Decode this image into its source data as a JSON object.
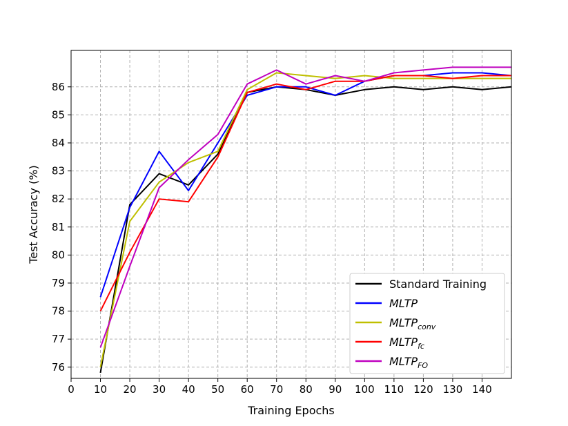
{
  "chart_data": {
    "type": "line",
    "xlabel": "Training Epochs",
    "ylabel": "Test Accuracy (%)",
    "xlim": [
      0,
      150
    ],
    "ylim": [
      75.6,
      87.3
    ],
    "x_ticks": [
      0,
      10,
      20,
      30,
      40,
      50,
      60,
      70,
      80,
      90,
      100,
      110,
      120,
      130,
      140
    ],
    "y_ticks": [
      76,
      77,
      78,
      79,
      80,
      81,
      82,
      83,
      84,
      85,
      86
    ],
    "grid": true,
    "legend_position": "lower-right",
    "x": [
      10,
      20,
      30,
      40,
      50,
      60,
      70,
      80,
      90,
      100,
      110,
      120,
      130,
      140,
      150
    ],
    "series": [
      {
        "name": "Standard Training",
        "name_main": "Standard Training",
        "name_sub": "",
        "italic": false,
        "color": "#000000",
        "values": [
          75.8,
          81.8,
          82.9,
          82.5,
          83.6,
          85.8,
          86.0,
          85.9,
          85.7,
          85.9,
          86.0,
          85.9,
          86.0,
          85.9,
          86.0
        ]
      },
      {
        "name": "MLTP",
        "name_main": "MLTP",
        "name_sub": "",
        "italic": true,
        "color": "#0000ff",
        "values": [
          78.5,
          81.7,
          83.7,
          82.3,
          84.0,
          85.7,
          86.0,
          86.0,
          85.7,
          86.2,
          86.4,
          86.4,
          86.5,
          86.5,
          86.4
        ]
      },
      {
        "name": "MLTPconv",
        "name_main": "MLTP",
        "name_sub": "conv",
        "italic": true,
        "color": "#bfbf00",
        "values": [
          76.0,
          81.2,
          82.6,
          83.3,
          83.7,
          85.9,
          86.5,
          86.4,
          86.3,
          86.4,
          86.3,
          86.3,
          86.3,
          86.3,
          86.3
        ]
      },
      {
        "name": "MLTPfc",
        "name_main": "MLTP",
        "name_sub": "fc",
        "italic": true,
        "color": "#ff0000",
        "values": [
          78.0,
          80.1,
          82.0,
          81.9,
          83.5,
          85.8,
          86.1,
          85.9,
          86.2,
          86.2,
          86.4,
          86.4,
          86.3,
          86.4,
          86.4
        ]
      },
      {
        "name": "MLTPFO",
        "name_main": "MLTP",
        "name_sub": "FO",
        "italic": true,
        "color": "#bf00bf",
        "values": [
          76.7,
          79.6,
          82.4,
          83.4,
          84.3,
          86.1,
          86.6,
          86.1,
          86.4,
          86.2,
          86.5,
          86.6,
          86.7,
          86.7,
          86.7
        ]
      }
    ]
  }
}
